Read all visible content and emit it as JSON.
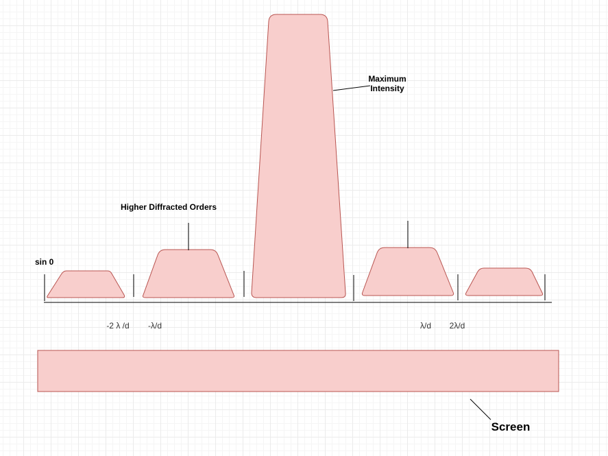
{
  "diagram": {
    "labels": {
      "sin_theta": "sin 0",
      "higher_orders": "Higher Diffracted Orders",
      "max_intensity_line1": "Maximum",
      "max_intensity_line2": "Intensity",
      "screen": "Screen"
    },
    "axis_ticks": [
      "-2 λ /d",
      "-λ/d",
      "λ/d",
      "2λ/d"
    ],
    "colors": {
      "fill": "#f8cecc",
      "stroke": "#b85450",
      "line": "#000000"
    }
  }
}
